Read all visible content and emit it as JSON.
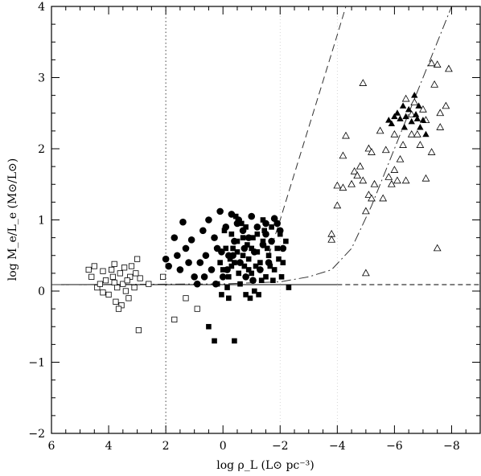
{
  "chart_data": {
    "type": "scatter",
    "xlabel": "log ρ_L (L⊙ pc⁻³)",
    "ylabel": "log M_e/L_e (M⊙/L⊙)",
    "xlim": [
      6,
      -9
    ],
    "ylim": [
      -2,
      4
    ],
    "x_ticks": [
      "6",
      "4",
      "2",
      "0",
      "−2",
      "−4",
      "−6",
      "−8"
    ],
    "x_tick_values": [
      6,
      4,
      2,
      0,
      -2,
      -4,
      -6,
      -8
    ],
    "y_ticks": [
      "4",
      "3",
      "2",
      "1",
      "0",
      "−1",
      "−2"
    ],
    "y_tick_values": [
      4,
      3,
      2,
      1,
      0,
      -1,
      -2
    ],
    "reference_lines": {
      "vertical_dotted_x": 2,
      "vertical_faint_x": [
        -2,
        -4
      ],
      "horizontal_solid_y": 0.09,
      "horizontal_dashed_y": 0.09
    },
    "curves": [
      {
        "style": "dashed",
        "points": [
          [
            -1.6,
            0.5
          ],
          [
            -2,
            1.0
          ],
          [
            -2.5,
            1.65
          ],
          [
            -3,
            2.3
          ],
          [
            -3.5,
            2.95
          ],
          [
            -4,
            3.6
          ],
          [
            -4.3,
            4.0
          ]
        ]
      },
      {
        "style": "dash-dot",
        "points": [
          [
            6,
            0.09
          ],
          [
            0,
            0.1
          ],
          [
            -2,
            0.13
          ],
          [
            -3,
            0.2
          ],
          [
            -3.8,
            0.3
          ],
          [
            -4.5,
            0.6
          ],
          [
            -5.2,
            1.2
          ],
          [
            -6,
            2.0
          ],
          [
            -6.8,
            2.8
          ],
          [
            -7.6,
            3.6
          ],
          [
            -8,
            4.0
          ]
        ]
      }
    ],
    "series": [
      {
        "marker": "open-square",
        "points": [
          [
            4.7,
            0.3
          ],
          [
            4.6,
            0.2
          ],
          [
            4.5,
            0.35
          ],
          [
            4.4,
            0.05
          ],
          [
            4.3,
            0.1
          ],
          [
            4.2,
            0.28
          ],
          [
            4.1,
            0.15
          ],
          [
            4.0,
            -0.05
          ],
          [
            3.9,
            0.3
          ],
          [
            3.85,
            0.2
          ],
          [
            3.8,
            0.38
          ],
          [
            3.75,
            -0.15
          ],
          [
            3.7,
            0.05
          ],
          [
            3.6,
            0.25
          ],
          [
            3.55,
            -0.2
          ],
          [
            3.5,
            0.1
          ],
          [
            3.45,
            0.33
          ],
          [
            3.4,
            0.0
          ],
          [
            3.3,
            -0.1
          ],
          [
            3.25,
            0.2
          ],
          [
            3.2,
            0.35
          ],
          [
            3.1,
            0.05
          ],
          [
            3.0,
            0.45
          ],
          [
            2.95,
            -0.55
          ],
          [
            2.9,
            0.18
          ],
          [
            3.65,
            -0.25
          ],
          [
            3.35,
            0.15
          ],
          [
            3.05,
            0.25
          ],
          [
            2.6,
            0.1
          ],
          [
            2.1,
            0.2
          ],
          [
            1.7,
            -0.4
          ],
          [
            1.3,
            -0.1
          ],
          [
            0.9,
            -0.25
          ],
          [
            3.8,
            0.12
          ],
          [
            4.2,
            -0.02
          ]
        ]
      },
      {
        "marker": "filled-circle",
        "points": [
          [
            2.0,
            0.45
          ],
          [
            1.9,
            0.35
          ],
          [
            1.7,
            0.75
          ],
          [
            1.6,
            0.5
          ],
          [
            1.5,
            0.3
          ],
          [
            1.4,
            0.97
          ],
          [
            1.3,
            0.6
          ],
          [
            1.2,
            0.4
          ],
          [
            1.1,
            0.72
          ],
          [
            1.0,
            0.2
          ],
          [
            0.9,
            0.1
          ],
          [
            0.8,
            0.4
          ],
          [
            0.7,
            0.85
          ],
          [
            0.6,
            0.5
          ],
          [
            0.5,
            1.0
          ],
          [
            0.4,
            0.3
          ],
          [
            0.3,
            0.75
          ],
          [
            0.2,
            0.6
          ],
          [
            0.1,
            1.12
          ],
          [
            0.0,
            0.2
          ],
          [
            -0.1,
            0.9
          ],
          [
            -0.2,
            0.5
          ],
          [
            -0.3,
            1.08
          ],
          [
            -0.4,
            0.7
          ],
          [
            -0.5,
            0.95
          ],
          [
            -0.6,
            0.4
          ],
          [
            -0.7,
            0.85
          ],
          [
            -0.8,
            0.2
          ],
          [
            -0.9,
            0.75
          ],
          [
            -1.0,
            1.05
          ],
          [
            -1.1,
            0.55
          ],
          [
            -1.2,
            0.9
          ],
          [
            -1.3,
            0.3
          ],
          [
            -1.4,
            0.65
          ],
          [
            -1.5,
            0.8
          ],
          [
            -1.6,
            0.4
          ],
          [
            -1.7,
            0.7
          ],
          [
            -1.8,
            1.02
          ],
          [
            -1.9,
            0.95
          ],
          [
            -2.0,
            0.85
          ],
          [
            -2.1,
            0.6
          ],
          [
            0.25,
            0.1
          ],
          [
            -0.15,
            0.3
          ],
          [
            -0.55,
            1.0
          ],
          [
            -1.05,
            0.15
          ],
          [
            -1.5,
            0.95
          ],
          [
            0.65,
            0.2
          ],
          [
            0.05,
            0.55
          ],
          [
            -0.35,
            0.5
          ],
          [
            -0.75,
            0.6
          ]
        ]
      },
      {
        "marker": "filled-square",
        "points": [
          [
            0.5,
            -0.5
          ],
          [
            0.3,
            -0.7
          ],
          [
            -0.4,
            -0.7
          ],
          [
            0.2,
            0.1
          ],
          [
            0.0,
            0.3
          ],
          [
            -0.1,
            0.6
          ],
          [
            -0.2,
            0.2
          ],
          [
            -0.3,
            0.8
          ],
          [
            -0.4,
            0.4
          ],
          [
            -0.5,
            0.7
          ],
          [
            -0.6,
            0.1
          ],
          [
            -0.7,
            0.5
          ],
          [
            -0.8,
            0.9
          ],
          [
            -0.9,
            0.3
          ],
          [
            -1.0,
            0.6
          ],
          [
            -1.1,
            0.0
          ],
          [
            -1.2,
            0.8
          ],
          [
            -1.3,
            0.4
          ],
          [
            -1.4,
            0.7
          ],
          [
            -1.5,
            0.2
          ],
          [
            -1.6,
            0.5
          ],
          [
            -1.7,
            0.9
          ],
          [
            -1.8,
            0.3
          ],
          [
            -1.9,
            0.6
          ],
          [
            -2.0,
            0.8
          ],
          [
            -2.1,
            0.4
          ],
          [
            -2.2,
            0.7
          ],
          [
            -2.3,
            0.05
          ],
          [
            -0.25,
            0.45
          ],
          [
            -0.55,
            0.25
          ],
          [
            -0.85,
            0.65
          ],
          [
            -1.15,
            0.35
          ],
          [
            -1.45,
            0.85
          ],
          [
            -1.75,
            0.15
          ],
          [
            -0.05,
            0.85
          ],
          [
            -0.45,
            1.05
          ],
          [
            -0.95,
            -0.1
          ],
          [
            -1.25,
            -0.05
          ],
          [
            -0.15,
            0.05
          ],
          [
            -0.65,
            0.95
          ],
          [
            -1.05,
            0.75
          ],
          [
            -1.35,
            0.15
          ],
          [
            -0.35,
            0.6
          ],
          [
            -0.75,
            0.35
          ],
          [
            -1.55,
            0.6
          ],
          [
            -1.95,
            0.45
          ],
          [
            0.1,
            0.4
          ],
          [
            -0.5,
            0.55
          ],
          [
            -0.9,
            0.45
          ],
          [
            -1.2,
            0.55
          ],
          [
            -0.3,
            0.35
          ],
          [
            -0.7,
            0.75
          ],
          [
            -1.0,
            0.25
          ],
          [
            -1.65,
            0.35
          ],
          [
            0.05,
            -0.05
          ],
          [
            -0.2,
            -0.1
          ],
          [
            -0.8,
            -0.05
          ],
          [
            -1.4,
            1.0
          ],
          [
            -2.05,
            0.2
          ]
        ]
      },
      {
        "marker": "open-triangle",
        "points": [
          [
            -3.8,
            0.8
          ],
          [
            -3.8,
            0.72
          ],
          [
            -4.0,
            1.2
          ],
          [
            -4.0,
            1.48
          ],
          [
            -4.2,
            1.45
          ],
          [
            -4.2,
            1.9
          ],
          [
            -4.3,
            2.18
          ],
          [
            -4.5,
            1.5
          ],
          [
            -4.6,
            1.68
          ],
          [
            -4.7,
            1.62
          ],
          [
            -4.8,
            1.75
          ],
          [
            -4.9,
            2.92
          ],
          [
            -4.9,
            1.55
          ],
          [
            -5.0,
            1.12
          ],
          [
            -5.0,
            0.25
          ],
          [
            -5.1,
            1.35
          ],
          [
            -5.1,
            2.0
          ],
          [
            -5.2,
            1.95
          ],
          [
            -5.2,
            1.3
          ],
          [
            -5.3,
            1.5
          ],
          [
            -5.5,
            2.25
          ],
          [
            -5.6,
            1.3
          ],
          [
            -5.8,
            1.6
          ],
          [
            -5.9,
            1.5
          ],
          [
            -6.0,
            1.7
          ],
          [
            -6.1,
            1.55
          ],
          [
            -6.2,
            1.85
          ],
          [
            -6.3,
            2.05
          ],
          [
            -6.4,
            2.7
          ],
          [
            -6.4,
            1.55
          ],
          [
            -6.6,
            2.2
          ],
          [
            -6.6,
            2.48
          ],
          [
            -6.8,
            2.2
          ],
          [
            -6.9,
            2.05
          ],
          [
            -7.0,
            2.55
          ],
          [
            -7.1,
            1.58
          ],
          [
            -7.1,
            2.4
          ],
          [
            -7.3,
            1.95
          ],
          [
            -7.4,
            2.9
          ],
          [
            -7.5,
            3.18
          ],
          [
            -7.5,
            0.6
          ],
          [
            -7.6,
            2.3
          ],
          [
            -7.6,
            2.5
          ],
          [
            -7.8,
            2.6
          ],
          [
            -7.3,
            3.2
          ],
          [
            -7.9,
            3.12
          ],
          [
            -6.0,
            2.2
          ],
          [
            -5.7,
            1.98
          ],
          [
            -6.7,
            2.65
          ]
        ]
      },
      {
        "marker": "filled-triangle",
        "points": [
          [
            -5.8,
            2.4
          ],
          [
            -5.9,
            2.35
          ],
          [
            -6.0,
            2.45
          ],
          [
            -6.1,
            2.5
          ],
          [
            -6.2,
            2.42
          ],
          [
            -6.3,
            2.6
          ],
          [
            -6.35,
            2.3
          ],
          [
            -6.4,
            2.45
          ],
          [
            -6.5,
            2.55
          ],
          [
            -6.6,
            2.38
          ],
          [
            -6.7,
            2.75
          ],
          [
            -6.75,
            2.48
          ],
          [
            -6.8,
            2.42
          ],
          [
            -6.85,
            2.6
          ],
          [
            -6.9,
            2.3
          ],
          [
            -7.0,
            2.4
          ],
          [
            -7.1,
            2.2
          ]
        ]
      }
    ]
  }
}
